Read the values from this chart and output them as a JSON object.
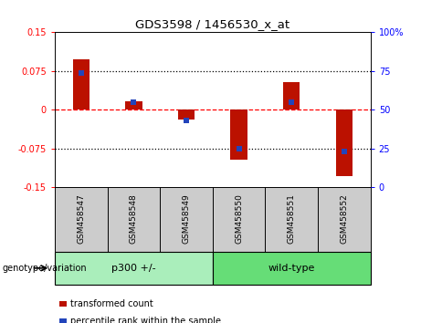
{
  "title": "GDS3598 / 1456530_x_at",
  "samples": [
    "GSM458547",
    "GSM458548",
    "GSM458549",
    "GSM458550",
    "GSM458551",
    "GSM458552"
  ],
  "transformed_count": [
    0.098,
    0.017,
    -0.018,
    -0.097,
    0.053,
    -0.128
  ],
  "percentile_rank_raw": [
    74,
    55,
    43,
    25,
    55,
    23
  ],
  "ylim_left": [
    -0.15,
    0.15
  ],
  "yticks_left": [
    -0.15,
    -0.075,
    0,
    0.075,
    0.15
  ],
  "ytick_labels_left": [
    "-0.15",
    "-0.075",
    "0",
    "0.075",
    "0.15"
  ],
  "ylim_right": [
    0,
    100
  ],
  "yticks_right": [
    0,
    25,
    50,
    75,
    100
  ],
  "ytick_labels_right": [
    "0",
    "25",
    "50",
    "75",
    "100%"
  ],
  "bar_color": "#BB1100",
  "blue_color": "#2244BB",
  "genotype_groups": [
    {
      "label": "p300 +/-",
      "count": 3,
      "color": "#AAEEBB"
    },
    {
      "label": "wild-type",
      "count": 3,
      "color": "#66DD77"
    }
  ],
  "genotype_label": "genotype/variation",
  "legend_items": [
    {
      "label": "transformed count",
      "color": "#BB1100"
    },
    {
      "label": "percentile rank within the sample",
      "color": "#2244BB"
    }
  ],
  "bar_width": 0.32,
  "blue_marker_size": 5.0,
  "label_area_bg": "#CCCCCC",
  "plot_bg": "#FFFFFF"
}
